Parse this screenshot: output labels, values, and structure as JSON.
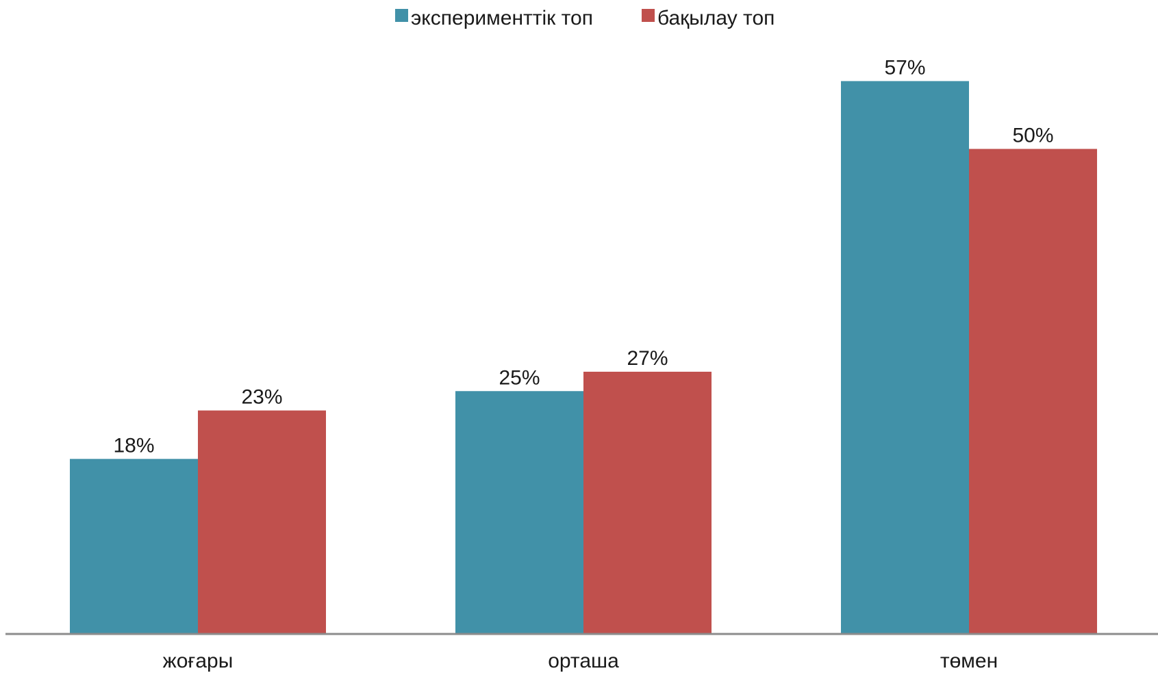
{
  "chart_data": {
    "type": "bar",
    "title": "",
    "xlabel": "",
    "ylabel": "",
    "categories": [
      "жоғары",
      "орташа",
      "төмен"
    ],
    "series": [
      {
        "name": "эксперименттік топ",
        "color": "#4191a8",
        "values": [
          18,
          25,
          57
        ],
        "labels": [
          "18%",
          "25%",
          "57%"
        ]
      },
      {
        "name": "бақылау топ",
        "color": "#c0504d",
        "values": [
          23,
          27,
          50
        ],
        "labels": [
          "23%",
          "27%",
          "50%"
        ]
      }
    ],
    "ylim": [
      0,
      60
    ],
    "grid": false,
    "legend_position": "top-center"
  }
}
